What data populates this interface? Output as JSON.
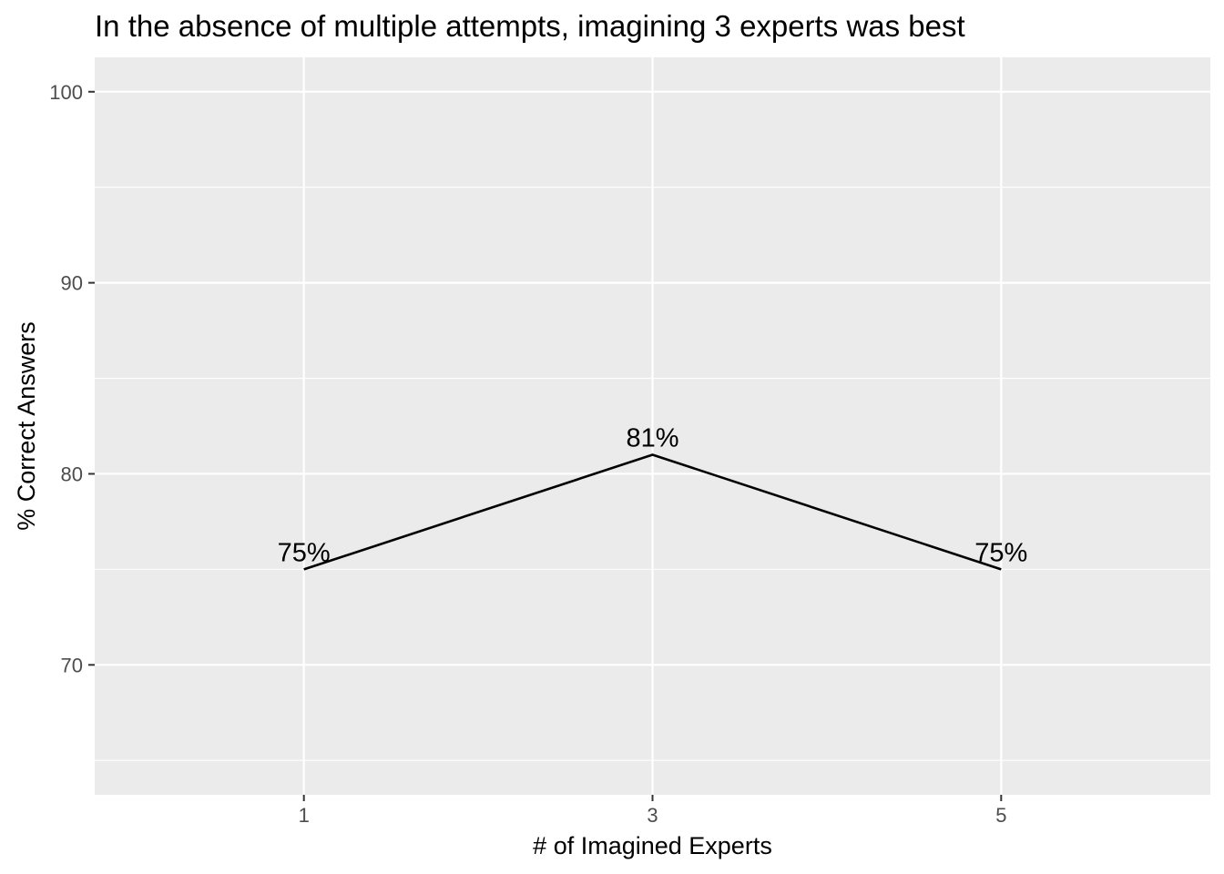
{
  "chart_data": {
    "type": "line",
    "title": "In the absence of multiple attempts, imagining 3 experts was best",
    "xlabel": "# of Imagined Experts",
    "ylabel": "% Correct Answers",
    "x": [
      1,
      3,
      5
    ],
    "x_tick_labels": [
      "1",
      "3",
      "5"
    ],
    "xlim": [
      -0.2,
      6.2
    ],
    "y_ticks": [
      70,
      80,
      90,
      100
    ],
    "y_tick_labels": [
      "70",
      "80",
      "90",
      "100"
    ],
    "ylim": [
      63.2,
      101.8
    ],
    "series": [
      {
        "values": [
          75,
          81,
          75
        ],
        "data_labels": [
          "75%",
          "81%",
          "75%"
        ]
      }
    ],
    "grid": true,
    "legend": "none",
    "colors": {
      "panel_background": "#ebebeb",
      "grid_line": "#ffffff",
      "series_line": "#000000",
      "tick_text": "#4d4d4d",
      "tick_mark": "#333333"
    }
  }
}
